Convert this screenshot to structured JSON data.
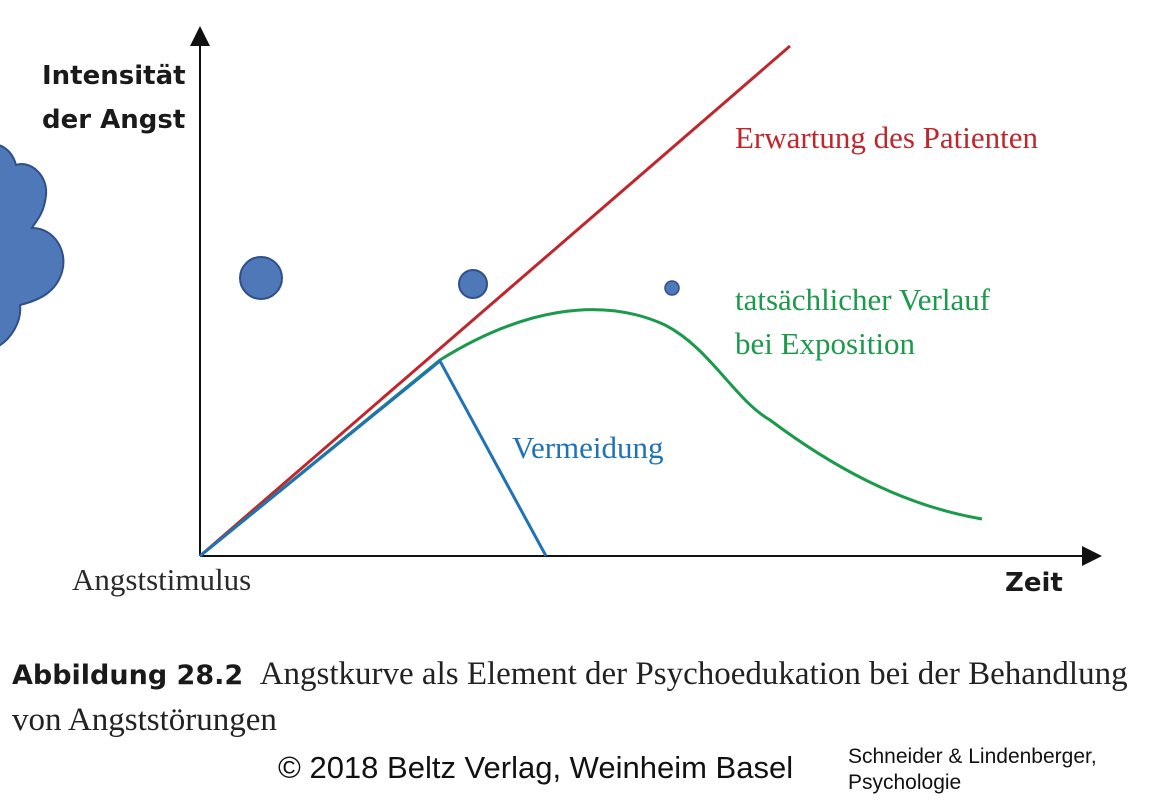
{
  "diagram": {
    "y_axis_label": [
      "Intensität",
      "der Angst"
    ],
    "x_axis_label": "Zeit",
    "origin_label": "Angststimulus",
    "curves": {
      "expectation": {
        "label": "Erwartung des Patienten",
        "color": "#c0272d"
      },
      "actual": {
        "label": [
          "tatsächlicher Verlauf",
          "bei Exposition"
        ],
        "color": "#1a9a4a"
      },
      "avoidance": {
        "label": "Vermeidung",
        "color": "#1f72b8"
      }
    },
    "bubble_color": "#4f78b8",
    "bubble_outline": "#2e4f8a"
  },
  "caption": {
    "prefix": "Abbildung 28.2",
    "text": "Angstkurve als Element der Psychoedukation bei der Behandlung von Angststörungen"
  },
  "footer": {
    "copyright": "© 2018 Beltz Verlag, Weinheim Basel",
    "source": [
      "Schneider & Lindenberger,",
      "Psychologie"
    ]
  }
}
